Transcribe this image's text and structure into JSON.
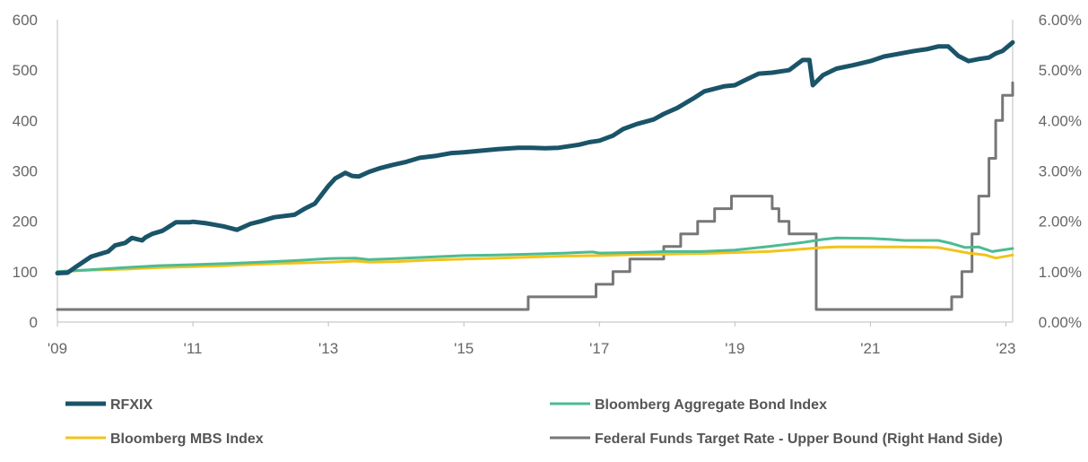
{
  "chart_data": {
    "type": "line",
    "title": "",
    "xlabel": "",
    "ylabel": "",
    "x_ticks": [
      "'09",
      "'11",
      "'13",
      "'15",
      "'17",
      "'19",
      "'21",
      "'23"
    ],
    "x_range": [
      2009.0,
      2023.1
    ],
    "y_left": {
      "ticks": [
        "0",
        "100",
        "200",
        "300",
        "400",
        "500",
        "600"
      ],
      "range": [
        0,
        600
      ]
    },
    "y_right": {
      "ticks": [
        "0.00%",
        "1.00%",
        "2.00%",
        "3.00%",
        "4.00%",
        "5.00%",
        "6.00%"
      ],
      "range": [
        0,
        6
      ]
    },
    "grid": false,
    "legend_position": "bottom",
    "series": [
      {
        "name": "RFXIX",
        "axis": "left",
        "color": "#1a5468",
        "x": [
          2009.0,
          2009.15,
          2009.3,
          2009.5,
          2009.75,
          2009.85,
          2010.0,
          2010.1,
          2010.25,
          2010.3,
          2010.4,
          2010.55,
          2010.75,
          2010.95,
          2011.0,
          2011.2,
          2011.45,
          2011.65,
          2011.85,
          2012.0,
          2012.2,
          2012.5,
          2012.65,
          2012.8,
          2013.0,
          2013.1,
          2013.25,
          2013.35,
          2013.45,
          2013.6,
          2013.75,
          2013.95,
          2014.15,
          2014.35,
          2014.6,
          2014.8,
          2015.0,
          2015.25,
          2015.5,
          2015.8,
          2016.0,
          2016.2,
          2016.4,
          2016.7,
          2016.85,
          2017.0,
          2017.2,
          2017.35,
          2017.55,
          2017.8,
          2017.95,
          2018.15,
          2018.4,
          2018.55,
          2018.85,
          2019.0,
          2019.15,
          2019.35,
          2019.55,
          2019.8,
          2020.0,
          2020.1,
          2020.15,
          2020.3,
          2020.5,
          2020.75,
          2021.0,
          2021.2,
          2021.45,
          2021.65,
          2021.85,
          2022.0,
          2022.15,
          2022.3,
          2022.45,
          2022.6,
          2022.75,
          2022.85,
          2022.95,
          2023.1
        ],
        "values": [
          97,
          98,
          112,
          130,
          140,
          152,
          157,
          167,
          162,
          168,
          175,
          181,
          198,
          198,
          199,
          196,
          190,
          183,
          195,
          200,
          208,
          213,
          225,
          235,
          270,
          285,
          296,
          290,
          289,
          298,
          305,
          312,
          318,
          326,
          330,
          335,
          337,
          340,
          343,
          346,
          346,
          345,
          346,
          352,
          357,
          360,
          370,
          383,
          393,
          402,
          413,
          425,
          445,
          458,
          468,
          470,
          480,
          493,
          495,
          500,
          520,
          520,
          470,
          490,
          503,
          510,
          518,
          527,
          533,
          538,
          542,
          547,
          547,
          528,
          518,
          522,
          525,
          533,
          538,
          555
        ]
      },
      {
        "name": "Bloomberg Aggregate Bond Index",
        "axis": "left",
        "color": "#4cbb93",
        "x": [
          2009.0,
          2009.5,
          2010.0,
          2010.5,
          2011.0,
          2011.5,
          2012.0,
          2012.5,
          2013.0,
          2013.4,
          2013.6,
          2014.0,
          2014.5,
          2015.0,
          2015.5,
          2016.0,
          2016.5,
          2016.9,
          2017.0,
          2017.5,
          2018.0,
          2018.5,
          2019.0,
          2019.5,
          2020.0,
          2020.3,
          2020.5,
          2021.0,
          2021.3,
          2021.5,
          2022.0,
          2022.2,
          2022.4,
          2022.6,
          2022.8,
          2023.1
        ],
        "values": [
          100,
          104,
          108,
          112,
          114,
          116,
          119,
          122,
          126,
          127,
          124,
          126,
          129,
          132,
          133,
          135,
          137,
          139,
          137,
          138,
          140,
          140,
          143,
          150,
          158,
          164,
          167,
          166,
          164,
          162,
          162,
          156,
          148,
          149,
          140,
          146
        ]
      },
      {
        "name": "Bloomberg MBS Index",
        "axis": "left",
        "color": "#f2c31a",
        "x": [
          2009.0,
          2009.5,
          2010.0,
          2010.5,
          2011.0,
          2011.5,
          2012.0,
          2012.5,
          2013.0,
          2013.4,
          2013.6,
          2014.0,
          2014.5,
          2015.0,
          2015.5,
          2016.0,
          2016.5,
          2017.0,
          2017.5,
          2018.0,
          2018.5,
          2019.0,
          2019.5,
          2020.0,
          2020.3,
          2020.5,
          2021.0,
          2021.5,
          2022.0,
          2022.2,
          2022.45,
          2022.7,
          2022.85,
          2023.1
        ],
        "values": [
          100,
          103,
          105,
          108,
          110,
          112,
          115,
          117,
          119,
          121,
          119,
          120,
          123,
          125,
          127,
          129,
          131,
          132,
          134,
          135,
          136,
          138,
          140,
          145,
          148,
          149,
          149,
          149,
          148,
          143,
          137,
          133,
          127,
          133
        ]
      },
      {
        "name": "Federal Funds Target Rate - Upper Bound (Right Hand Side)",
        "axis": "right",
        "color": "#777777",
        "step": true,
        "x": [
          2009.0,
          2015.95,
          2016.95,
          2017.2,
          2017.45,
          2017.95,
          2018.2,
          2018.45,
          2018.7,
          2018.95,
          2019.55,
          2019.65,
          2019.8,
          2020.2,
          2022.2,
          2022.35,
          2022.5,
          2022.6,
          2022.75,
          2022.85,
          2022.95,
          2023.1
        ],
        "values": [
          0.25,
          0.5,
          0.75,
          1.0,
          1.25,
          1.5,
          1.75,
          2.0,
          2.25,
          2.5,
          2.25,
          2.0,
          1.75,
          0.25,
          0.5,
          1.0,
          1.75,
          2.5,
          3.25,
          4.0,
          4.5,
          4.75
        ]
      }
    ]
  }
}
